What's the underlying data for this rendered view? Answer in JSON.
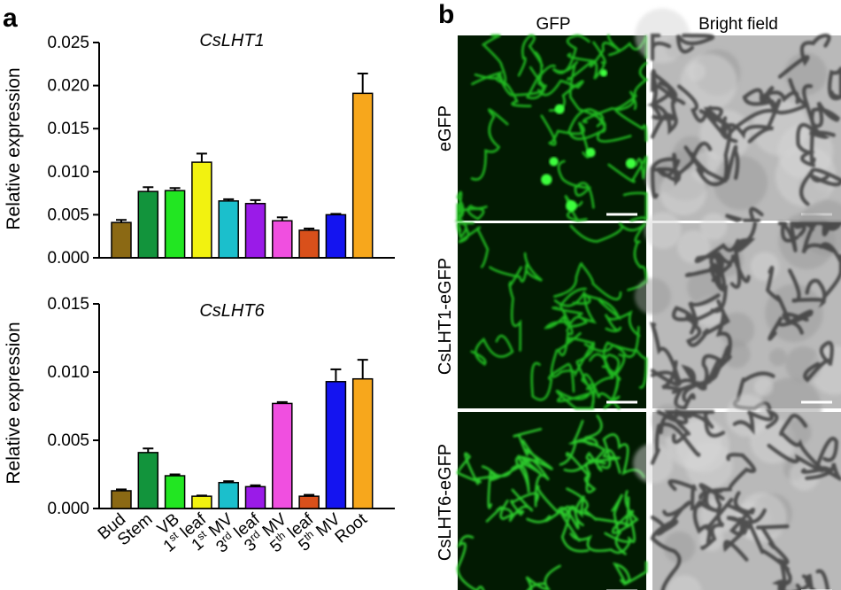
{
  "panel_a": {
    "letter": "a"
  },
  "panel_b": {
    "letter": "b",
    "col_headers": [
      "GFP",
      "Bright field"
    ],
    "row_labels": [
      "eGFP",
      "CsLHT1-eGFP",
      "CsLHT6-eGFP"
    ]
  },
  "colors": [
    "#8B6914",
    "#12943C",
    "#22E622",
    "#F2F210",
    "#1BBFCC",
    "#9A1BE8",
    "#F04FE0",
    "#D9501B",
    "#1414F0",
    "#F7A71C"
  ],
  "chart_data": [
    {
      "type": "bar",
      "title": "CsLHT1",
      "ylabel": "Relative expression",
      "ylim": [
        0,
        0.025
      ],
      "yticks": [
        "0.000",
        "0.005",
        "0.010",
        "0.015",
        "0.020",
        "0.025"
      ],
      "categories": [
        "Bud",
        "Stem",
        "VB",
        "1st leaf",
        "1st MV",
        "3rd leaf",
        "3rd MV",
        "5th leaf",
        "5th MV",
        "Root"
      ],
      "values": [
        0.0041,
        0.0077,
        0.0078,
        0.0111,
        0.0066,
        0.0063,
        0.0043,
        0.0032,
        0.005,
        0.0191
      ],
      "errors": [
        0.0003,
        0.0005,
        0.0003,
        0.001,
        0.0002,
        0.0004,
        0.0004,
        0.0002,
        0.0001,
        0.0023
      ]
    },
    {
      "type": "bar",
      "title": "CsLHT6",
      "ylabel": "Relative expression",
      "ylim": [
        0,
        0.015
      ],
      "yticks": [
        "0.000",
        "0.005",
        "0.010",
        "0.015"
      ],
      "categories": [
        "Bud",
        "Stem",
        "VB",
        "1st leaf",
        "1st MV",
        "3rd leaf",
        "3rd MV",
        "5th leaf",
        "5th MV",
        "Root"
      ],
      "tick_labels": [
        {
          "base": "Bud",
          "sup": "",
          "rest": ""
        },
        {
          "base": "Stem",
          "sup": "",
          "rest": ""
        },
        {
          "base": "VB",
          "sup": "",
          "rest": ""
        },
        {
          "base": "1",
          "sup": "st",
          "rest": " leaf"
        },
        {
          "base": "1",
          "sup": "st",
          "rest": " MV"
        },
        {
          "base": "3",
          "sup": "rd",
          "rest": " leaf"
        },
        {
          "base": "3",
          "sup": "rd",
          "rest": " MV"
        },
        {
          "base": "5",
          "sup": "th",
          "rest": " leaf"
        },
        {
          "base": "5",
          "sup": "th",
          "rest": " MV"
        },
        {
          "base": "Root",
          "sup": "",
          "rest": ""
        }
      ],
      "values": [
        0.0013,
        0.0041,
        0.0024,
        0.0009,
        0.0019,
        0.0016,
        0.0077,
        0.0009,
        0.0093,
        0.0095
      ],
      "errors": [
        0.0001,
        0.0003,
        0.0001,
        5e-05,
        0.0001,
        0.0001,
        0.0001,
        0.0001,
        0.0009,
        0.0014
      ]
    }
  ]
}
